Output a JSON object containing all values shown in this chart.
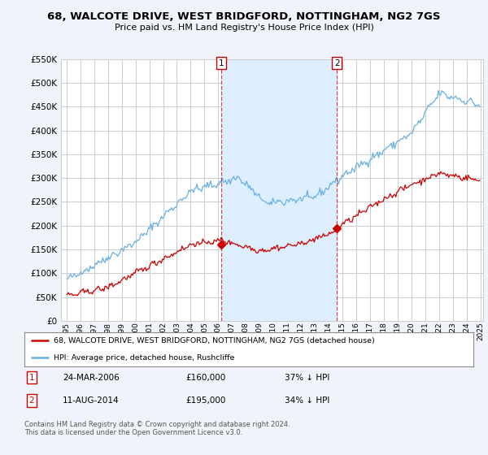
{
  "title": "68, WALCOTE DRIVE, WEST BRIDGFORD, NOTTINGHAM, NG2 7GS",
  "subtitle": "Price paid vs. HM Land Registry's House Price Index (HPI)",
  "red_label": "68, WALCOTE DRIVE, WEST BRIDGFORD, NOTTINGHAM, NG2 7GS (detached house)",
  "blue_label": "HPI: Average price, detached house, Rushcliffe",
  "transaction1_date": "24-MAR-2006",
  "transaction1_price": "£160,000",
  "transaction1_hpi": "37% ↓ HPI",
  "transaction2_date": "11-AUG-2014",
  "transaction2_price": "£195,000",
  "transaction2_hpi": "34% ↓ HPI",
  "footer": "Contains HM Land Registry data © Crown copyright and database right 2024.\nThis data is licensed under the Open Government Licence v3.0.",
  "background_color": "#f0f4fa",
  "plot_bg_color": "#ffffff",
  "grid_color": "#cccccc",
  "red_color": "#cc0000",
  "blue_color": "#6ab0e0",
  "shade_color": "#ddeeff",
  "ylim": [
    0,
    550000
  ],
  "yticks": [
    0,
    50000,
    100000,
    150000,
    200000,
    250000,
    300000,
    350000,
    400000,
    450000,
    500000,
    550000
  ],
  "vline1_x": 2006.2,
  "vline2_x": 2014.6,
  "transaction1_y": 160000,
  "transaction2_y": 195000,
  "xlim_left": 1994.6,
  "xlim_right": 2025.2
}
